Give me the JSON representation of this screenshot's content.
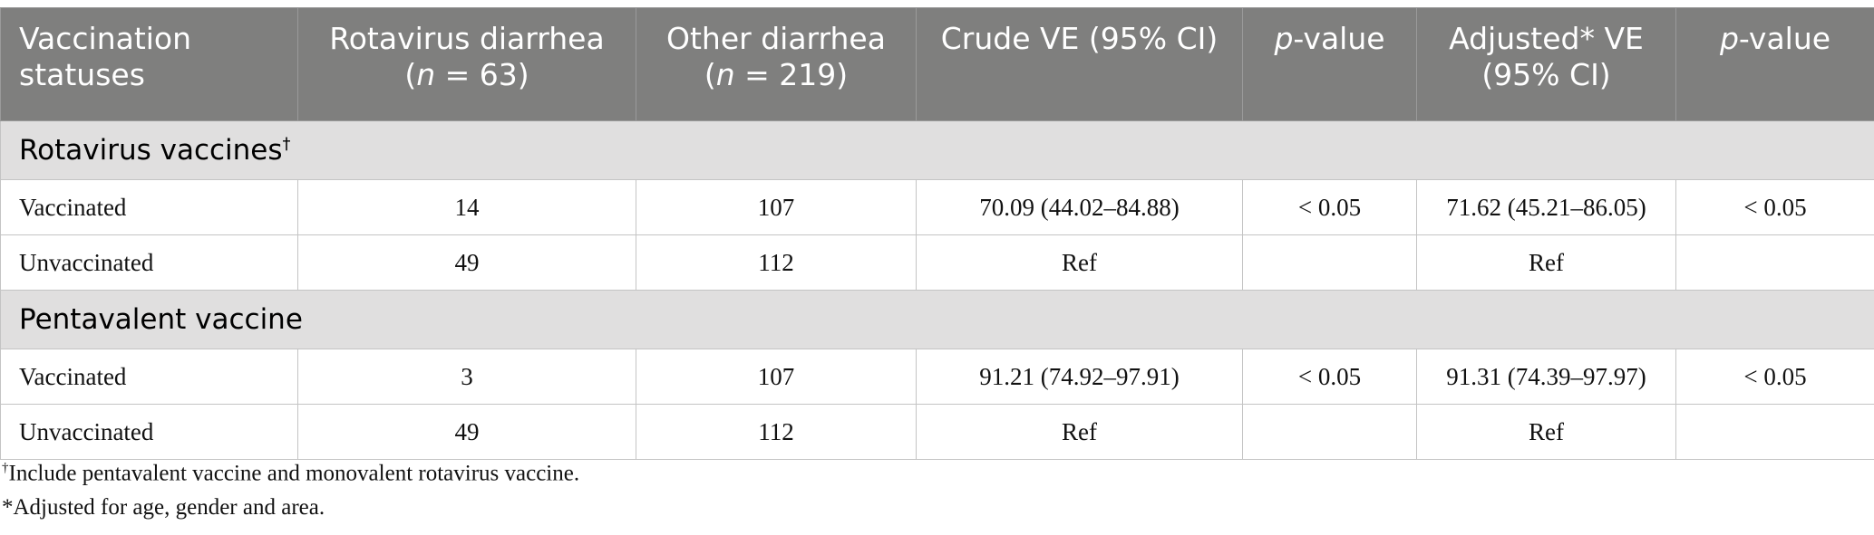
{
  "table": {
    "header": {
      "status": "Vaccination statuses",
      "rota": {
        "name": "Rotavirus diarrhea",
        "open": "(",
        "italic": "n",
        "rest": " = 63)"
      },
      "other": {
        "name": "Other diarrhea",
        "open": "(",
        "italic": "n",
        "rest": " = 219)"
      },
      "crude": "Crude VE (95% CI)",
      "p1": {
        "italic": "p",
        "rest": "-value"
      },
      "adjusted": "Adjusted* VE (95% CI)",
      "p2": {
        "italic": "p",
        "rest": "-value"
      }
    },
    "sections": [
      {
        "title": "Rotavirus vaccines",
        "mark": "†",
        "rows": [
          {
            "status": "Vaccinated",
            "rota": 14,
            "other": 107,
            "crude": "70.09 (44.02–84.88)",
            "p1": "< 0.05",
            "adjusted": "71.62 (45.21–86.05)",
            "p2": "< 0.05"
          },
          {
            "status": "Unvaccinated",
            "rota": 49,
            "other": 112,
            "crude": "Ref",
            "adjusted": "Ref"
          }
        ]
      },
      {
        "title": "Pentavalent vaccine",
        "rows": [
          {
            "status": "Vaccinated",
            "rota": 3,
            "other": 107,
            "crude": "91.21 (74.92–97.91)",
            "p1": "< 0.05",
            "adjusted": "91.31 (74.39–97.97)",
            "p2": "< 0.05"
          },
          {
            "status": "Unvaccinated",
            "rota": 49,
            "other": 112,
            "crude": "Ref",
            "adjusted": "Ref"
          }
        ]
      }
    ]
  },
  "footnotes": [
    {
      "mark": "†",
      "text": "Include pentavalent vaccine and monovalent rotavirus vaccine."
    },
    {
      "text": "*Adjusted for age, gender and area."
    }
  ]
}
